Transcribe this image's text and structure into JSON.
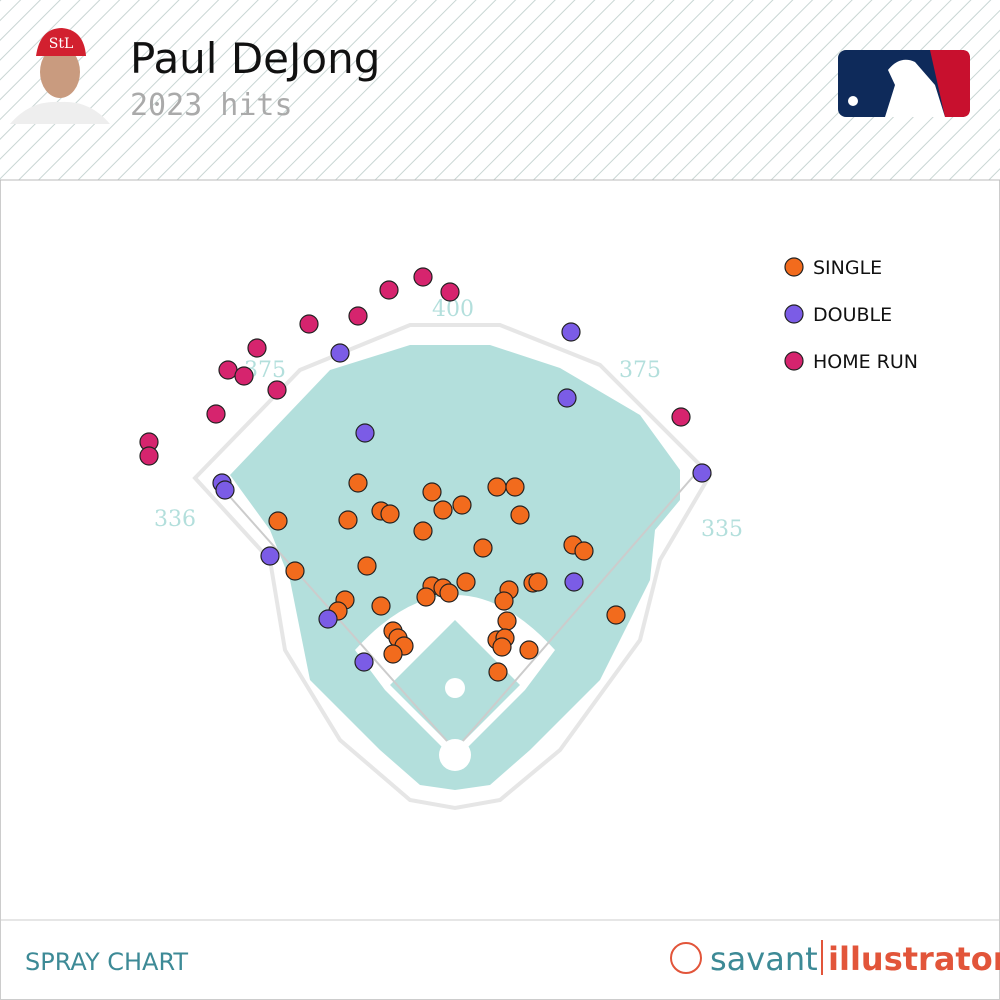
{
  "header": {
    "title": "Paul DeJong",
    "subtitle": "2023 hits"
  },
  "footer": {
    "label": "SPRAY CHART",
    "brand": "savant",
    "brand_accent": "illustrator"
  },
  "chart_data": {
    "type": "scatter",
    "distances": [
      400,
      375,
      375,
      336,
      335
    ],
    "series": [
      {
        "name": "SINGLE",
        "color": "#f26b1d",
        "x": [
          -97,
          -23,
          42,
          60,
          7,
          -12,
          -74,
          -65,
          -177,
          -107,
          65,
          -32,
          118,
          129,
          28,
          -88,
          -160,
          11,
          -23,
          -12,
          -6,
          -29,
          78,
          83,
          54,
          49,
          -110,
          -117,
          -74,
          52,
          161,
          -62,
          -57,
          -51,
          -62,
          42,
          50,
          47,
          74,
          43
        ],
        "values": [
          267,
          258,
          263,
          263,
          245,
          240,
          239,
          236,
          229,
          230,
          235,
          219,
          205,
          199,
          202,
          184,
          179,
          168,
          164,
          162,
          157,
          153,
          167,
          168,
          160,
          149,
          150,
          139,
          144,
          129,
          135,
          119,
          112,
          104,
          96,
          110,
          112,
          103,
          100,
          78
        ]
      },
      {
        "name": "DOUBLE",
        "color": "#7b5ce6",
        "x": [
          116,
          -115,
          -90,
          112,
          -233,
          -230,
          247,
          -185,
          119,
          -127,
          -91
        ],
        "values": [
          418,
          397,
          317,
          352,
          267,
          260,
          277,
          194,
          168,
          131,
          88
        ]
      },
      {
        "name": "HOME RUN",
        "color": "#d6246e",
        "x": [
          -32,
          -5,
          -66,
          -97,
          -146,
          -198,
          -227,
          -211,
          -178,
          -239,
          -306,
          -306,
          226
        ],
        "values": [
          473,
          458,
          460,
          434,
          426,
          402,
          380,
          374,
          360,
          336,
          308,
          294,
          333
        ]
      }
    ]
  }
}
